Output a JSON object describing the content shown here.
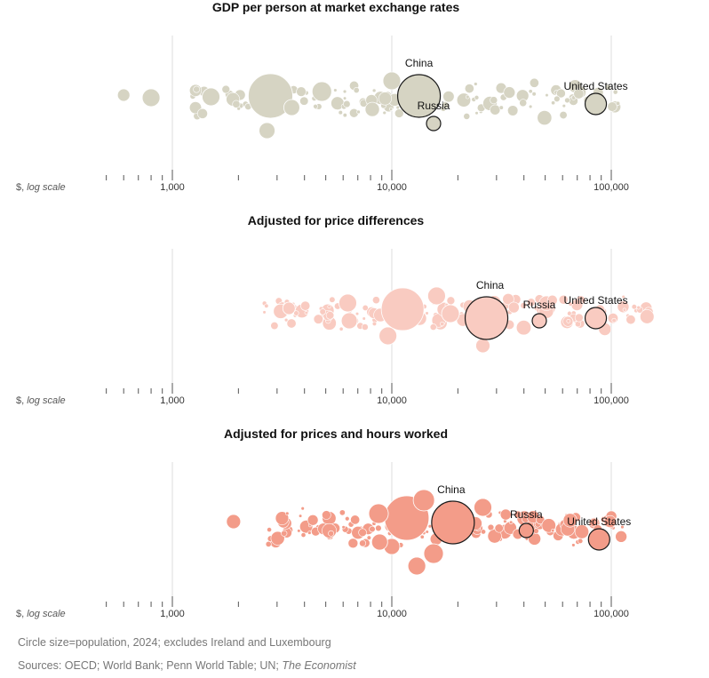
{
  "chart_data": [
    {
      "type": "scatter",
      "title": "GDP per person at market exchange rates",
      "xscale": "log",
      "xlim": [
        400,
        150000
      ],
      "xticks": [
        1000,
        10000,
        100000
      ],
      "xtick_labels": [
        "1,000",
        "10,000",
        "100,000"
      ],
      "scale_label": "$, log scale",
      "color": "#d6d4c3",
      "highlights": [
        {
          "name": "China",
          "x": 13300,
          "r": 24
        },
        {
          "name": "Russia",
          "x": 15500,
          "r": 8
        },
        {
          "name": "United States",
          "x": 85000,
          "r": 12
        }
      ]
    },
    {
      "type": "scatter",
      "title": "Adjusted for price differences",
      "xscale": "log",
      "xlim": [
        400,
        150000
      ],
      "xticks": [
        1000,
        10000,
        100000
      ],
      "xtick_labels": [
        "1,000",
        "10,000",
        "100,000"
      ],
      "scale_label": "$, log scale",
      "color": "#f9cbc1",
      "highlights": [
        {
          "name": "China",
          "x": 27000,
          "r": 24
        },
        {
          "name": "Russia",
          "x": 47000,
          "r": 8
        },
        {
          "name": "United States",
          "x": 85000,
          "r": 12
        }
      ]
    },
    {
      "type": "scatter",
      "title": "Adjusted for prices and hours worked",
      "xscale": "log",
      "xlim": [
        400,
        150000
      ],
      "xticks": [
        1000,
        10000,
        100000
      ],
      "xtick_labels": [
        "1,000",
        "10,000",
        "100,000"
      ],
      "scale_label": "$, log scale",
      "color": "#f39c89",
      "highlights": [
        {
          "name": "China",
          "x": 19000,
          "r": 24
        },
        {
          "name": "Russia",
          "x": 41000,
          "r": 8
        },
        {
          "name": "United States",
          "x": 88000,
          "r": 12
        }
      ]
    }
  ],
  "footer": {
    "note": "Circle size=population, 2024; excludes Ireland and Luxembourg",
    "sources_prefix": "Sources: OECD; World Bank; Penn World Table; UN; ",
    "sources_italic": "The Economist"
  }
}
